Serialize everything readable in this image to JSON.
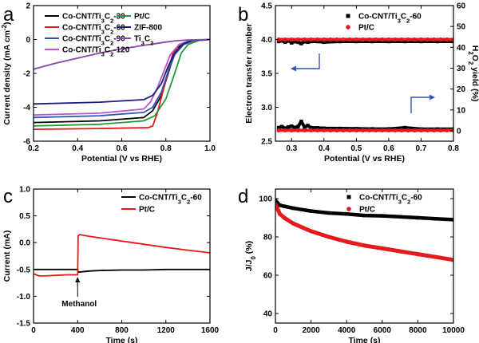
{
  "chart_data": [
    {
      "panel_label": "a",
      "type": "line",
      "xlabel": "Potential (V vs RHE)",
      "ylabel": "Current density (mA cm⁻²)",
      "xlim": [
        0.2,
        1.0
      ],
      "ylim": [
        -6,
        2
      ],
      "x_ticks": [
        "0.2",
        "0.4",
        "0.6",
        "0.8",
        "1.0"
      ],
      "y_ticks": [
        "-6",
        "-4",
        "-2",
        "0",
        "2"
      ],
      "legend_placement": "top-left",
      "series": [
        {
          "name": "Co-CNT/Ti₃C₂-30",
          "color": "#000000",
          "x": [
            0.2,
            0.5,
            0.7,
            0.74,
            0.78,
            0.82,
            0.85,
            0.9,
            1.0
          ],
          "y": [
            -4.9,
            -4.8,
            -4.6,
            -4.2,
            -3.3,
            -1.6,
            -0.5,
            -0.1,
            0
          ]
        },
        {
          "name": "Co-CNT/Ti₃C₂-60",
          "color": "#e41a1c",
          "x": [
            0.2,
            0.5,
            0.72,
            0.74,
            0.76,
            0.8,
            0.83,
            0.86,
            0.9,
            1.0
          ],
          "y": [
            -5.3,
            -5.25,
            -5.2,
            -5.1,
            -4.4,
            -2.4,
            -0.9,
            -0.3,
            -0.1,
            0
          ]
        },
        {
          "name": "Co-CNT/Ti₃C₂-90",
          "color": "#2f56b5",
          "x": [
            0.2,
            0.5,
            0.7,
            0.74,
            0.78,
            0.81,
            0.84,
            0.88,
            0.92,
            1.0
          ],
          "y": [
            -4.6,
            -4.5,
            -4.3,
            -4.0,
            -3.1,
            -1.9,
            -0.9,
            -0.3,
            -0.1,
            0
          ]
        },
        {
          "name": "Co-CNT/Ti₃C₂-120",
          "color": "#bb55cc",
          "x": [
            0.2,
            0.5,
            0.7,
            0.73,
            0.76,
            0.79,
            0.82,
            0.86,
            0.9,
            1.0
          ],
          "y": [
            -4.45,
            -4.35,
            -4.1,
            -3.7,
            -2.9,
            -1.9,
            -0.9,
            -0.3,
            -0.1,
            0
          ]
        },
        {
          "name": "Pt/C",
          "color": "#1f9a3a",
          "x": [
            0.2,
            0.5,
            0.7,
            0.75,
            0.8,
            0.84,
            0.87,
            0.9,
            0.95,
            1.0
          ],
          "y": [
            -5.1,
            -5.0,
            -4.8,
            -4.5,
            -3.5,
            -2.0,
            -0.8,
            -0.3,
            -0.05,
            0
          ]
        },
        {
          "name": "ZIF-800",
          "color": "#1c1c7a",
          "x": [
            0.2,
            0.5,
            0.7,
            0.74,
            0.78,
            0.81,
            0.84,
            0.88,
            0.92,
            1.0
          ],
          "y": [
            -3.8,
            -3.7,
            -3.55,
            -3.3,
            -2.6,
            -1.6,
            -0.8,
            -0.25,
            -0.05,
            0
          ]
        },
        {
          "name": "Ti₃C₂",
          "color": "#8e44ad",
          "x": [
            0.2,
            0.3,
            0.4,
            0.5,
            0.6,
            0.7,
            0.75,
            0.8,
            0.85,
            0.9,
            1.0
          ],
          "y": [
            -1.75,
            -1.4,
            -1.1,
            -0.8,
            -0.55,
            -0.35,
            -0.25,
            -0.15,
            -0.07,
            -0.03,
            0
          ]
        }
      ]
    },
    {
      "panel_label": "b",
      "type": "scatter",
      "xlabel": "Potential (V vs RHE)",
      "ylabel": "Electron transfer number",
      "ylabel_right": "H₂O₂ yield (%)",
      "xlim": [
        0.25,
        0.8
      ],
      "ylim": [
        2.5,
        4.5
      ],
      "ylim_right": [
        -5,
        60
      ],
      "x_ticks": [
        "0.3",
        "0.4",
        "0.5",
        "0.6",
        "0.7",
        "0.8"
      ],
      "y_ticks": [
        "2.5",
        "3.0",
        "3.5",
        "4.0",
        "4.5"
      ],
      "y_ticks_right": [
        "0",
        "10",
        "20",
        "30",
        "40",
        "50",
        "60"
      ],
      "legend_placement": "top-right",
      "series": [
        {
          "name": "Co-CNT/Ti₃C₂-60",
          "color": "#000000",
          "marker": "square",
          "axis": "left",
          "x": [
            0.26,
            0.27,
            0.28,
            0.29,
            0.3,
            0.31,
            0.32,
            0.33,
            0.34,
            0.35,
            0.36,
            0.38,
            0.4,
            0.45,
            0.5,
            0.55,
            0.6,
            0.65,
            0.7,
            0.75,
            0.8
          ],
          "y": [
            3.97,
            3.98,
            3.96,
            3.98,
            3.95,
            3.97,
            3.96,
            3.94,
            3.97,
            3.96,
            3.97,
            3.97,
            3.96,
            3.97,
            3.97,
            3.97,
            3.97,
            3.97,
            3.97,
            3.97,
            3.97
          ]
        },
        {
          "name": "Co-CNT/Ti₃C₂-60 H₂O₂ yield",
          "color": "#000000",
          "marker": "square",
          "axis": "right",
          "x": [
            0.26,
            0.27,
            0.28,
            0.29,
            0.3,
            0.31,
            0.32,
            0.33,
            0.34,
            0.35,
            0.36,
            0.38,
            0.4,
            0.45,
            0.5,
            0.55,
            0.6,
            0.65,
            0.7,
            0.75,
            0.8
          ],
          "y": [
            1.5,
            2.0,
            1.2,
            1.8,
            2.2,
            1.6,
            2.0,
            4.5,
            1.7,
            2.5,
            1.5,
            1.4,
            1.2,
            1.1,
            1.0,
            0.9,
            0.9,
            1.5,
            0.8,
            0.8,
            0.8
          ]
        },
        {
          "name": "Pt/C",
          "color": "#e41a1c",
          "marker": "circle",
          "axis": "left",
          "x": [
            0.26,
            0.28,
            0.3,
            0.32,
            0.34,
            0.36,
            0.38,
            0.4,
            0.42,
            0.44,
            0.46,
            0.48,
            0.5,
            0.52,
            0.54,
            0.56,
            0.58,
            0.6,
            0.62,
            0.64,
            0.66,
            0.68,
            0.7,
            0.72,
            0.74,
            0.76,
            0.78,
            0.8
          ],
          "y": [
            4.0,
            4.0,
            4.0,
            4.0,
            4.0,
            4.0,
            4.0,
            4.0,
            4.0,
            4.0,
            4.0,
            4.0,
            4.0,
            4.0,
            4.0,
            4.0,
            4.0,
            4.0,
            4.0,
            4.0,
            4.0,
            4.0,
            4.0,
            4.0,
            4.0,
            4.0,
            4.0,
            4.0
          ]
        },
        {
          "name": "Pt/C H₂O₂ yield",
          "color": "#e41a1c",
          "marker": "circle",
          "axis": "right",
          "x": [
            0.26,
            0.28,
            0.3,
            0.32,
            0.34,
            0.36,
            0.38,
            0.4,
            0.42,
            0.44,
            0.46,
            0.48,
            0.5,
            0.52,
            0.54,
            0.56,
            0.58,
            0.6,
            0.62,
            0.64,
            0.66,
            0.68,
            0.7,
            0.72,
            0.74,
            0.76,
            0.78,
            0.8
          ],
          "y": [
            0.2,
            0.2,
            0.2,
            0.2,
            0.2,
            0.2,
            0.2,
            0.2,
            0.2,
            0.2,
            0.2,
            0.2,
            0.2,
            0.2,
            0.2,
            0.2,
            0.2,
            0.2,
            0.2,
            0.2,
            0.2,
            0.2,
            0.2,
            0.2,
            0.2,
            0.2,
            0.2,
            0.2
          ]
        }
      ]
    },
    {
      "panel_label": "c",
      "type": "line",
      "xlabel": "Time (s)",
      "ylabel": "Current (mA)",
      "xlim": [
        0,
        1600
      ],
      "ylim": [
        -1.5,
        1.0
      ],
      "x_ticks": [
        "0",
        "400",
        "800",
        "1200",
        "1600"
      ],
      "y_ticks": [
        "-1.5",
        "-1.0",
        "-0.5",
        "0.0",
        "0.5",
        "1.0"
      ],
      "legend_placement": "top-right",
      "annotation": "Methanol",
      "annotation_x": 400,
      "series": [
        {
          "name": "Co-CNT/Ti₃C₂-60",
          "color": "#000000",
          "x": [
            0,
            100,
            200,
            300,
            400,
            405,
            500,
            600,
            800,
            1000,
            1200,
            1400,
            1600
          ],
          "y": [
            -0.5,
            -0.5,
            -0.5,
            -0.5,
            -0.5,
            -0.55,
            -0.53,
            -0.52,
            -0.51,
            -0.51,
            -0.5,
            -0.5,
            -0.5
          ]
        },
        {
          "name": "Pt/C",
          "color": "#e41a1c",
          "x": [
            0,
            50,
            100,
            200,
            300,
            395,
            400,
            405,
            420,
            500,
            600,
            800,
            1000,
            1200,
            1400,
            1600
          ],
          "y": [
            -0.58,
            -0.62,
            -0.62,
            -0.61,
            -0.6,
            -0.6,
            -0.6,
            0.13,
            0.15,
            0.12,
            0.09,
            0.03,
            -0.03,
            -0.09,
            -0.14,
            -0.19
          ]
        }
      ]
    },
    {
      "panel_label": "d",
      "type": "scatter",
      "xlabel": "Time (s)",
      "ylabel": "J/J₀ (%)",
      "xlim": [
        0,
        10000
      ],
      "ylim": [
        35,
        105
      ],
      "x_ticks": [
        "0",
        "2000",
        "4000",
        "6000",
        "8000",
        "10000"
      ],
      "y_ticks": [
        "40",
        "60",
        "80",
        "100"
      ],
      "legend_placement": "top-right",
      "series": [
        {
          "name": "Co-CNT/Ti₃C₂-60",
          "color": "#000000",
          "marker": "square",
          "x": [
            0,
            250,
            500,
            1000,
            2000,
            3000,
            4000,
            5000,
            6000,
            7000,
            8000,
            9000,
            10000
          ],
          "y": [
            99,
            96.5,
            96,
            95,
            93.5,
            92.5,
            92,
            91.2,
            91,
            90.5,
            90,
            89.5,
            89
          ]
        },
        {
          "name": "Pt/C",
          "color": "#e41a1c",
          "marker": "circle",
          "x": [
            0,
            250,
            500,
            1000,
            2000,
            3000,
            4000,
            5000,
            6000,
            7000,
            8000,
            9000,
            10000
          ],
          "y": [
            97,
            92,
            90,
            87,
            83,
            80,
            77.5,
            75.5,
            74,
            72.5,
            71,
            69.5,
            68
          ]
        }
      ]
    }
  ]
}
